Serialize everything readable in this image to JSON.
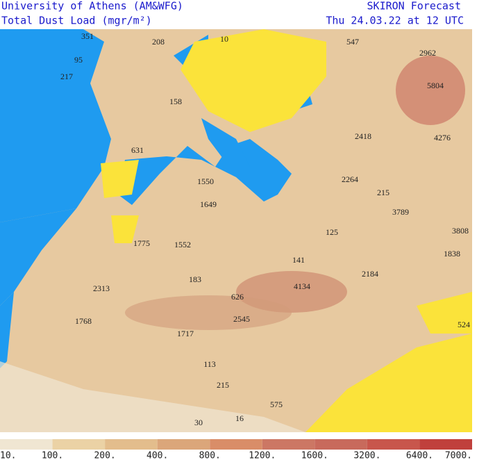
{
  "header": {
    "institution": "University of Athens (AM&WFG)",
    "field": "Total Dust Load (mgr/m²)",
    "product": "SKIRON Forecast",
    "valid_time": "Thu 24.03.22 at 12 UTC"
  },
  "map_labels": [
    "351",
    "208",
    "10",
    "547",
    "2962",
    "5804",
    "217",
    "95",
    "158",
    "4276",
    "631",
    "2418",
    "2264",
    "215",
    "1550",
    "3789",
    "1649",
    "125",
    "3808",
    "1775",
    "1552",
    "1838",
    "141",
    "2184",
    "183",
    "4134",
    "2313",
    "626",
    "2545",
    "1768",
    "1717",
    "524",
    "113",
    "215",
    "16",
    "575",
    "30"
  ],
  "colorbar": {
    "labels": [
      "10.",
      "100.",
      "200.",
      "400.",
      "800.",
      "1200.",
      "1600.",
      "3200.",
      "6400.",
      "7000."
    ]
  }
}
